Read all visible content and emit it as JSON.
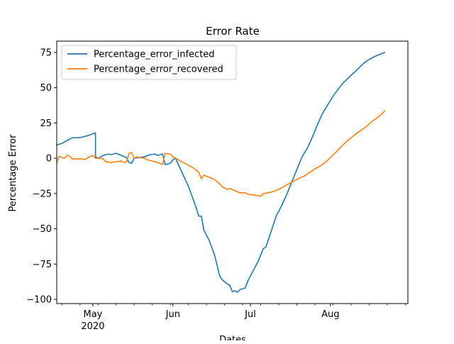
{
  "chart_data": {
    "type": "line",
    "title": "Error Rate",
    "xlabel": "Dates",
    "ylabel": "Percentage Error",
    "ylim": [
      -103,
      83
    ],
    "xlim": [
      "2020-04-17",
      "2020-08-31"
    ],
    "grid": false,
    "legend_position": "top-left",
    "x_ticks": [
      {
        "date": "2020-05-01",
        "label": "May",
        "sublabel": "2020"
      },
      {
        "date": "2020-06-01",
        "label": "Jun",
        "sublabel": ""
      },
      {
        "date": "2020-07-01",
        "label": "Jul",
        "sublabel": ""
      },
      {
        "date": "2020-08-01",
        "label": "Aug",
        "sublabel": ""
      }
    ],
    "y_ticks": [
      75,
      50,
      25,
      0,
      -25,
      -50,
      -75,
      -100
    ],
    "y_tick_labels": [
      "75",
      "50",
      "25",
      "0",
      "−25",
      "−50",
      "−75",
      "−100"
    ],
    "series": [
      {
        "name": "Percentage_error_infected",
        "color": "#1f77b4",
        "points": [
          [
            "2020-04-17",
            9.5
          ],
          [
            "2020-04-19",
            10.5
          ],
          [
            "2020-04-21",
            12.5
          ],
          [
            "2020-04-23",
            14.5
          ],
          [
            "2020-04-25",
            14.5
          ],
          [
            "2020-04-27",
            15
          ],
          [
            "2020-04-29",
            16
          ],
          [
            "2020-05-02",
            18
          ],
          [
            "2020-05-02",
            1
          ],
          [
            "2020-05-03",
            0
          ],
          [
            "2020-05-05",
            2
          ],
          [
            "2020-05-07",
            3
          ],
          [
            "2020-05-08",
            2.5
          ],
          [
            "2020-05-10",
            3.5
          ],
          [
            "2020-05-12",
            2
          ],
          [
            "2020-05-14",
            0.5
          ],
          [
            "2020-05-15",
            -3
          ],
          [
            "2020-05-16",
            -3.5
          ],
          [
            "2020-05-17",
            0
          ],
          [
            "2020-05-19",
            0.5
          ],
          [
            "2020-05-21",
            1
          ],
          [
            "2020-05-23",
            2.5
          ],
          [
            "2020-05-25",
            3
          ],
          [
            "2020-05-26",
            2
          ],
          [
            "2020-05-28",
            3
          ],
          [
            "2020-05-29",
            -4.5
          ],
          [
            "2020-05-31",
            -3.5
          ],
          [
            "2020-06-01",
            -1
          ],
          [
            "2020-06-02",
            0
          ],
          [
            "2020-06-03",
            -4
          ],
          [
            "2020-06-05",
            -12
          ],
          [
            "2020-06-07",
            -20
          ],
          [
            "2020-06-09",
            -30
          ],
          [
            "2020-06-10",
            -35
          ],
          [
            "2020-06-11",
            -41
          ],
          [
            "2020-06-12",
            -41
          ],
          [
            "2020-06-13",
            -51
          ],
          [
            "2020-06-15",
            -58
          ],
          [
            "2020-06-17",
            -68
          ],
          [
            "2020-06-18",
            -75
          ],
          [
            "2020-06-19",
            -83
          ],
          [
            "2020-06-20",
            -86
          ],
          [
            "2020-06-22",
            -89
          ],
          [
            "2020-06-23",
            -90
          ],
          [
            "2020-06-24",
            -94.5
          ],
          [
            "2020-06-25",
            -94
          ],
          [
            "2020-06-26",
            -95
          ],
          [
            "2020-06-27",
            -93
          ],
          [
            "2020-06-28",
            -92.5
          ],
          [
            "2020-06-29",
            -92
          ],
          [
            "2020-06-30",
            -87
          ],
          [
            "2020-07-02",
            -80
          ],
          [
            "2020-07-04",
            -73
          ],
          [
            "2020-07-06",
            -64
          ],
          [
            "2020-07-07",
            -63
          ],
          [
            "2020-07-09",
            -52
          ],
          [
            "2020-07-11",
            -41
          ],
          [
            "2020-07-13",
            -34
          ],
          [
            "2020-07-15",
            -26
          ],
          [
            "2020-07-17",
            -17
          ],
          [
            "2020-07-19",
            -8
          ],
          [
            "2020-07-21",
            1
          ],
          [
            "2020-07-23",
            7
          ],
          [
            "2020-07-25",
            15
          ],
          [
            "2020-07-27",
            24
          ],
          [
            "2020-07-29",
            32
          ],
          [
            "2020-07-31",
            38
          ],
          [
            "2020-08-02",
            44
          ],
          [
            "2020-08-04",
            49
          ],
          [
            "2020-08-06",
            53.5
          ],
          [
            "2020-08-08",
            57
          ],
          [
            "2020-08-10",
            60.5
          ],
          [
            "2020-08-12",
            64
          ],
          [
            "2020-08-14",
            67.5
          ],
          [
            "2020-08-16",
            70
          ],
          [
            "2020-08-18",
            72
          ],
          [
            "2020-08-20",
            73.5
          ],
          [
            "2020-08-22",
            75
          ]
        ]
      },
      {
        "name": "Percentage_error_recovered",
        "color": "#ff7f0e",
        "points": [
          [
            "2020-04-17",
            -3
          ],
          [
            "2020-04-18",
            1.5
          ],
          [
            "2020-04-19",
            0.5
          ],
          [
            "2020-04-20",
            0
          ],
          [
            "2020-04-21",
            2
          ],
          [
            "2020-04-22",
            1.5
          ],
          [
            "2020-04-23",
            -0.5
          ],
          [
            "2020-04-25",
            -0.5
          ],
          [
            "2020-04-27",
            -0.5
          ],
          [
            "2020-04-28",
            -1
          ],
          [
            "2020-04-29",
            0.5
          ],
          [
            "2020-05-01",
            2
          ],
          [
            "2020-05-02",
            0
          ],
          [
            "2020-05-03",
            0
          ],
          [
            "2020-05-05",
            -0.5
          ],
          [
            "2020-05-06",
            -2.5
          ],
          [
            "2020-05-08",
            -3
          ],
          [
            "2020-05-10",
            -2.5
          ],
          [
            "2020-05-12",
            -2
          ],
          [
            "2020-05-13",
            -3
          ],
          [
            "2020-05-14",
            -2.5
          ],
          [
            "2020-05-15",
            3.5
          ],
          [
            "2020-05-16",
            4
          ],
          [
            "2020-05-17",
            0
          ],
          [
            "2020-05-18",
            1
          ],
          [
            "2020-05-19",
            0.5
          ],
          [
            "2020-05-21",
            0
          ],
          [
            "2020-05-22",
            -1
          ],
          [
            "2020-05-24",
            -2
          ],
          [
            "2020-05-26",
            -3
          ],
          [
            "2020-05-28",
            -4.5
          ],
          [
            "2020-05-29",
            3.5
          ],
          [
            "2020-05-31",
            3
          ],
          [
            "2020-06-01",
            1
          ],
          [
            "2020-06-03",
            -1
          ],
          [
            "2020-06-05",
            -3
          ],
          [
            "2020-06-07",
            -5
          ],
          [
            "2020-06-09",
            -7
          ],
          [
            "2020-06-11",
            -10
          ],
          [
            "2020-06-12",
            -14.5
          ],
          [
            "2020-06-13",
            -12
          ],
          [
            "2020-06-15",
            -13.5
          ],
          [
            "2020-06-17",
            -15
          ],
          [
            "2020-06-19",
            -18
          ],
          [
            "2020-06-20",
            -20
          ],
          [
            "2020-06-22",
            -22
          ],
          [
            "2020-06-23",
            -21.5
          ],
          [
            "2020-06-25",
            -23
          ],
          [
            "2020-06-27",
            -24.5
          ],
          [
            "2020-06-29",
            -24.5
          ],
          [
            "2020-06-30",
            -25.5
          ],
          [
            "2020-07-02",
            -26
          ],
          [
            "2020-07-04",
            -26.5
          ],
          [
            "2020-07-05",
            -27
          ],
          [
            "2020-07-06",
            -25
          ],
          [
            "2020-07-08",
            -24.5
          ],
          [
            "2020-07-10",
            -23.5
          ],
          [
            "2020-07-12",
            -22
          ],
          [
            "2020-07-14",
            -20
          ],
          [
            "2020-07-16",
            -18
          ],
          [
            "2020-07-18",
            -16
          ],
          [
            "2020-07-20",
            -14
          ],
          [
            "2020-07-22",
            -12.5
          ],
          [
            "2020-07-24",
            -10
          ],
          [
            "2020-07-26",
            -7.5
          ],
          [
            "2020-07-28",
            -5.5
          ],
          [
            "2020-07-30",
            -3
          ],
          [
            "2020-08-01",
            0.5
          ],
          [
            "2020-08-03",
            4
          ],
          [
            "2020-08-05",
            8
          ],
          [
            "2020-08-07",
            11.5
          ],
          [
            "2020-08-09",
            14.5
          ],
          [
            "2020-08-11",
            17.5
          ],
          [
            "2020-08-13",
            20
          ],
          [
            "2020-08-15",
            22.5
          ],
          [
            "2020-08-17",
            26
          ],
          [
            "2020-08-19",
            28.5
          ],
          [
            "2020-08-21",
            31.5
          ],
          [
            "2020-08-22",
            33.5
          ]
        ]
      }
    ]
  }
}
